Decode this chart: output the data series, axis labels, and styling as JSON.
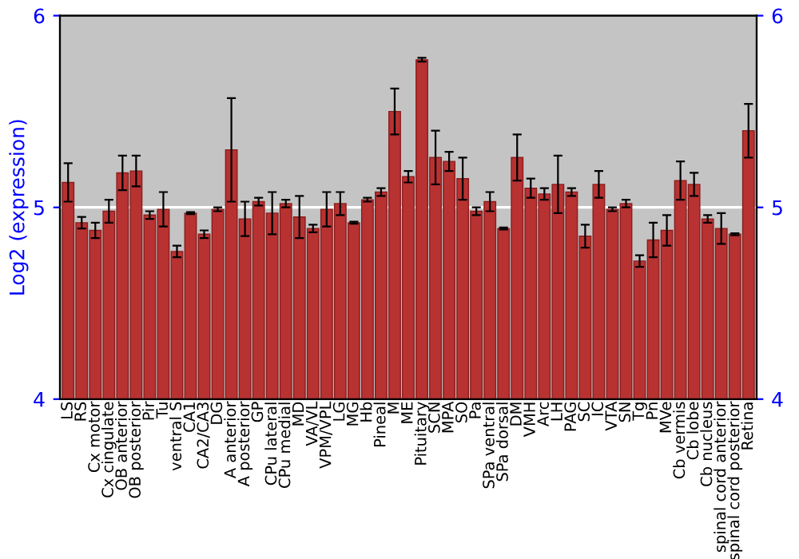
{
  "chart_data": {
    "type": "bar",
    "ylabel": "Log2 (expression)",
    "categories": [
      "LS",
      "RS",
      "Cx motor",
      "Cx cingulate",
      "OB anterior",
      "OB posterior",
      "Pir",
      "Tu",
      "ventral S",
      "CA1",
      "CA2/CA3",
      "DG",
      "A anterior",
      "A posterior",
      "GP",
      "CPu lateral",
      "CPu medial",
      "MD",
      "VA/VL",
      "VPM/VPL",
      "LG",
      "MG",
      "Hb",
      "Pineal",
      "M",
      "ME",
      "Pituitary",
      "SCN",
      "MPA",
      "SO",
      "Pa",
      "SPa ventral",
      "SPa dorsal",
      "DM",
      "VMH",
      "Arc",
      "LH",
      "PAG",
      "SC",
      "IC",
      "VTA",
      "SN",
      "Tg",
      "Pn",
      "MVe",
      "Cb vermis",
      "Cb lobe",
      "Cb nucleus",
      "spinal cord anterior",
      "spinal cord posterior",
      "Retina"
    ],
    "values": [
      5.13,
      4.92,
      4.88,
      4.98,
      5.18,
      5.19,
      4.96,
      4.99,
      4.77,
      4.97,
      4.86,
      4.99,
      5.3,
      4.94,
      5.03,
      4.97,
      5.02,
      4.95,
      4.89,
      4.99,
      5.02,
      4.92,
      5.04,
      5.08,
      5.5,
      5.16,
      5.77,
      5.26,
      5.24,
      5.15,
      4.98,
      5.03,
      4.89,
      5.26,
      5.1,
      5.07,
      5.12,
      5.08,
      4.85,
      5.12,
      4.99,
      5.02,
      4.72,
      4.83,
      4.88,
      5.14,
      5.12,
      4.94,
      4.89,
      4.86,
      5.4
    ],
    "errors": [
      0.1,
      0.03,
      0.04,
      0.06,
      0.09,
      0.08,
      0.02,
      0.09,
      0.03,
      0.005,
      0.02,
      0.01,
      0.27,
      0.09,
      0.02,
      0.11,
      0.02,
      0.11,
      0.02,
      0.09,
      0.06,
      0.005,
      0.01,
      0.02,
      0.12,
      0.03,
      0.01,
      0.14,
      0.05,
      0.11,
      0.02,
      0.05,
      0.005,
      0.12,
      0.05,
      0.03,
      0.15,
      0.02,
      0.06,
      0.07,
      0.01,
      0.02,
      0.03,
      0.09,
      0.08,
      0.1,
      0.06,
      0.02,
      0.08,
      0.005,
      0.14
    ],
    "color": "#b83232",
    "ylim": [
      4,
      6
    ],
    "yticks": [
      4,
      5,
      6
    ],
    "y2lim": [
      4,
      6
    ],
    "y2ticks": [
      4,
      5,
      6
    ],
    "ref_lines": [
      {
        "axis": "y",
        "value": 5,
        "color": "#ffffff"
      }
    ]
  }
}
